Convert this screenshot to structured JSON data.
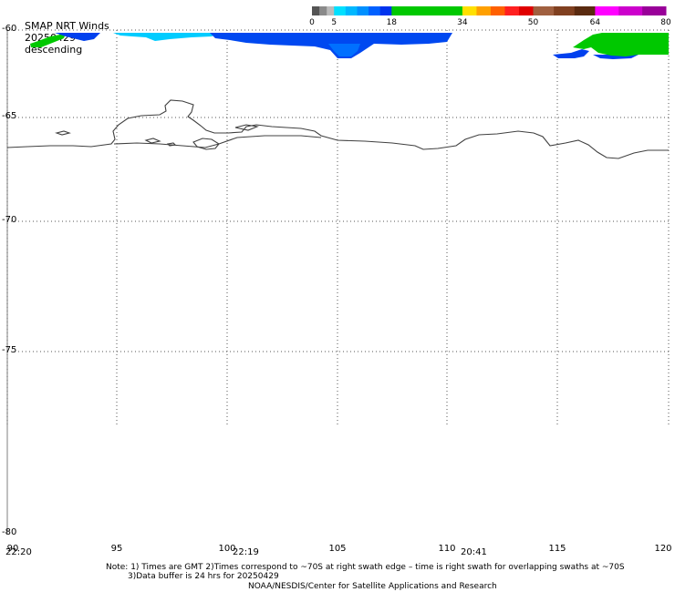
{
  "header": {
    "product": "SMAP NRT Winds",
    "date": "20250429",
    "pass": "descending"
  },
  "colorbar": {
    "ticks": [
      "0",
      "5",
      "18",
      "34",
      "50",
      "64",
      "80"
    ],
    "segments": [
      {
        "from": 0,
        "to": 5,
        "colors": [
          "#555555",
          "#8a8a8a",
          "#bbbbbb"
        ]
      },
      {
        "from": 5,
        "to": 18,
        "colors": [
          "#00e0ff",
          "#00b8ff",
          "#0090ff",
          "#0060ff",
          "#0033ee"
        ]
      },
      {
        "from": 18,
        "to": 34,
        "colors": [
          "#00c800"
        ]
      },
      {
        "from": 34,
        "to": 50,
        "colors": [
          "#ffe000",
          "#ffa000",
          "#ff6000",
          "#ff2020",
          "#e00000"
        ]
      },
      {
        "from": 50,
        "to": 64,
        "colors": [
          "#a06040",
          "#804020",
          "#5a2a10"
        ]
      },
      {
        "from": 64,
        "to": 80,
        "colors": [
          "#ff00ff",
          "#cc00cc",
          "#990099"
        ]
      }
    ]
  },
  "map": {
    "lat_labels": [
      "-60",
      "-65",
      "-70",
      "-75",
      "-80"
    ],
    "lon_labels": [
      "90",
      "95",
      "100",
      "105",
      "110",
      "115",
      "120"
    ],
    "lon_range": [
      90,
      120
    ],
    "lat_range": [
      -60,
      -80
    ]
  },
  "times": [
    "22:20",
    "22:19",
    "20:41"
  ],
  "notes": {
    "line1": "Note: 1) Times are GMT 2)Times correspond to ~70S at right swath edge – time is right swath for overlapping swaths at ~70S",
    "line2": "3)Data buffer is 24 hrs for 20250429",
    "line3": "NOAA/NESDIS/Center for Satellite Applications and Research"
  }
}
